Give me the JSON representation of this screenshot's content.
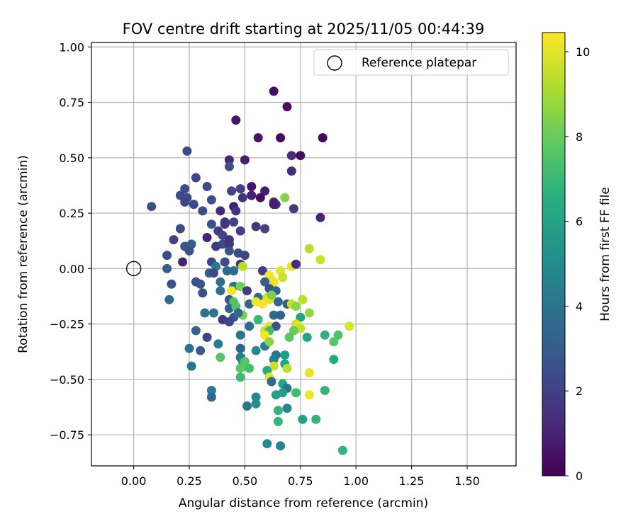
{
  "chart_data": {
    "type": "scatter",
    "title": "FOV centre drift starting at 2025/11/05 00:44:39",
    "xlabel": "Angular distance from reference (arcmin)",
    "ylabel": "Rotation from reference (arcmin)",
    "xlim": [
      -0.19,
      1.72
    ],
    "ylim": [
      -0.89,
      1.02
    ],
    "xticks": [
      0.0,
      0.25,
      0.5,
      0.75,
      1.0,
      1.25,
      1.5
    ],
    "xtick_labels": [
      "0.00",
      "0.25",
      "0.50",
      "0.75",
      "1.00",
      "1.25",
      "1.50"
    ],
    "yticks": [
      1.0,
      0.75,
      0.5,
      0.25,
      0.0,
      -0.25,
      -0.5,
      -0.75
    ],
    "ytick_labels": [
      "1.00",
      "0.75",
      "0.50",
      "0.25",
      "0.00",
      "−0.25",
      "−0.50",
      "−0.75"
    ],
    "grid": true,
    "legend": {
      "placement": "upper-right",
      "entries": [
        "Reference platepar"
      ]
    },
    "reference_point": {
      "x": 0.0,
      "y": 0.0
    },
    "colorbar": {
      "label": "Hours from first FF file",
      "colormap": "viridis",
      "range": [
        0,
        10.45
      ],
      "ticks": [
        0,
        2,
        4,
        6,
        8,
        10
      ],
      "tick_labels": [
        "0",
        "2",
        "4",
        "6",
        "8",
        "10"
      ]
    },
    "points": [
      {
        "x": 0.63,
        "y": 0.8,
        "c": 0.3
      },
      {
        "x": 0.69,
        "y": 0.73,
        "c": 0.4
      },
      {
        "x": 0.46,
        "y": 0.67,
        "c": 0.6
      },
      {
        "x": 0.56,
        "y": 0.59,
        "c": 0.5
      },
      {
        "x": 0.66,
        "y": 0.59,
        "c": 0.2
      },
      {
        "x": 0.85,
        "y": 0.59,
        "c": 0.2
      },
      {
        "x": 0.24,
        "y": 0.53,
        "c": 2.3
      },
      {
        "x": 0.71,
        "y": 0.51,
        "c": 1.4
      },
      {
        "x": 0.75,
        "y": 0.51,
        "c": 0.3
      },
      {
        "x": 0.43,
        "y": 0.49,
        "c": 1.2
      },
      {
        "x": 0.5,
        "y": 0.49,
        "c": 0.9
      },
      {
        "x": 0.43,
        "y": 0.46,
        "c": 2.5
      },
      {
        "x": 0.71,
        "y": 0.44,
        "c": 1.3
      },
      {
        "x": 0.28,
        "y": 0.41,
        "c": 2.2
      },
      {
        "x": 0.33,
        "y": 0.37,
        "c": 2.4
      },
      {
        "x": 0.53,
        "y": 0.37,
        "c": 0.6
      },
      {
        "x": 0.23,
        "y": 0.36,
        "c": 2.4
      },
      {
        "x": 0.44,
        "y": 0.35,
        "c": 2.0
      },
      {
        "x": 0.48,
        "y": 0.36,
        "c": 2.0
      },
      {
        "x": 0.59,
        "y": 0.35,
        "c": 0.8
      },
      {
        "x": 0.21,
        "y": 0.33,
        "c": 2.3
      },
      {
        "x": 0.24,
        "y": 0.32,
        "c": 2.4
      },
      {
        "x": 0.49,
        "y": 0.32,
        "c": 1.7
      },
      {
        "x": 0.53,
        "y": 0.33,
        "c": 0.9
      },
      {
        "x": 0.57,
        "y": 0.32,
        "c": 0.4
      },
      {
        "x": 0.68,
        "y": 0.32,
        "c": 8.5
      },
      {
        "x": 0.35,
        "y": 0.31,
        "c": 2.5
      },
      {
        "x": 0.63,
        "y": 0.3,
        "c": 1.2
      },
      {
        "x": 0.23,
        "y": 0.3,
        "c": 2.2
      },
      {
        "x": 0.27,
        "y": 0.29,
        "c": 2.3
      },
      {
        "x": 0.64,
        "y": 0.29,
        "c": 1.6
      },
      {
        "x": 0.63,
        "y": 0.29,
        "c": 0.9
      },
      {
        "x": 0.08,
        "y": 0.28,
        "c": 2.6
      },
      {
        "x": 0.45,
        "y": 0.28,
        "c": 0.8
      },
      {
        "x": 0.72,
        "y": 0.27,
        "c": 1.8
      },
      {
        "x": 0.31,
        "y": 0.26,
        "c": 2.4
      },
      {
        "x": 0.39,
        "y": 0.26,
        "c": 1.2
      },
      {
        "x": 0.46,
        "y": 0.26,
        "c": 1.5
      },
      {
        "x": 0.84,
        "y": 0.23,
        "c": 1.1
      },
      {
        "x": 0.41,
        "y": 0.21,
        "c": 1.5
      },
      {
        "x": 0.45,
        "y": 0.21,
        "c": 2.2
      },
      {
        "x": 0.35,
        "y": 0.2,
        "c": 2.6
      },
      {
        "x": 0.41,
        "y": 0.2,
        "c": 1.6
      },
      {
        "x": 0.55,
        "y": 0.19,
        "c": 1.6
      },
      {
        "x": 0.59,
        "y": 0.18,
        "c": 2.0
      },
      {
        "x": 0.21,
        "y": 0.18,
        "c": 2.4
      },
      {
        "x": 0.48,
        "y": 0.17,
        "c": 1.9
      },
      {
        "x": 0.38,
        "y": 0.17,
        "c": 1.8
      },
      {
        "x": 0.4,
        "y": 0.15,
        "c": 2.2
      },
      {
        "x": 0.33,
        "y": 0.14,
        "c": 1.0
      },
      {
        "x": 0.18,
        "y": 0.13,
        "c": 2.1
      },
      {
        "x": 0.43,
        "y": 0.13,
        "c": 1.5
      },
      {
        "x": 0.4,
        "y": 0.11,
        "c": 2.4
      },
      {
        "x": 0.43,
        "y": 0.11,
        "c": 1.6
      },
      {
        "x": 0.23,
        "y": 0.1,
        "c": 2.7
      },
      {
        "x": 0.26,
        "y": 0.11,
        "c": 3.1
      },
      {
        "x": 0.37,
        "y": 0.1,
        "c": 1.8
      },
      {
        "x": 0.25,
        "y": 0.08,
        "c": 2.5
      },
      {
        "x": 0.43,
        "y": 0.08,
        "c": 2.7
      },
      {
        "x": 0.47,
        "y": 0.07,
        "c": 2.4
      },
      {
        "x": 0.5,
        "y": 0.06,
        "c": 2.1
      },
      {
        "x": 0.15,
        "y": 0.06,
        "c": 2.4
      },
      {
        "x": 0.22,
        "y": 0.03,
        "c": 1.0
      },
      {
        "x": 0.35,
        "y": 0.03,
        "c": 2.2
      },
      {
        "x": 0.41,
        "y": 0.03,
        "c": 2.3
      },
      {
        "x": 0.48,
        "y": 0.02,
        "c": 1.5
      },
      {
        "x": 0.49,
        "y": 0.01,
        "c": 9.3
      },
      {
        "x": 0.71,
        "y": 0.01,
        "c": 10.0
      },
      {
        "x": 0.73,
        "y": 0.02,
        "c": 1.3
      },
      {
        "x": 0.37,
        "y": 0.01,
        "c": 4.3
      },
      {
        "x": 0.79,
        "y": 0.09,
        "c": 9.3
      },
      {
        "x": 0.84,
        "y": 0.04,
        "c": 9.6
      },
      {
        "x": 0.15,
        "y": 0.0,
        "c": 3.0
      },
      {
        "x": 0.34,
        "y": -0.02,
        "c": 3.0
      },
      {
        "x": 0.36,
        "y": -0.02,
        "c": 2.3
      },
      {
        "x": 0.42,
        "y": -0.01,
        "c": 3.5
      },
      {
        "x": 0.45,
        "y": -0.01,
        "c": 3.6
      },
      {
        "x": 0.58,
        "y": -0.01,
        "c": 1.8
      },
      {
        "x": 0.61,
        "y": -0.03,
        "c": 10.3
      },
      {
        "x": 0.66,
        "y": -0.01,
        "c": 10.0
      },
      {
        "x": 0.67,
        "y": -0.04,
        "c": 9.6
      },
      {
        "x": 0.62,
        "y": -0.05,
        "c": 10.2
      },
      {
        "x": 0.63,
        "y": -0.06,
        "c": 10.2
      },
      {
        "x": 0.59,
        "y": -0.06,
        "c": 3.2
      },
      {
        "x": 0.28,
        "y": -0.06,
        "c": 2.5
      },
      {
        "x": 0.3,
        "y": -0.07,
        "c": 2.7
      },
      {
        "x": 0.39,
        "y": -0.06,
        "c": 3.8
      },
      {
        "x": 0.45,
        "y": -0.08,
        "c": 3.8
      },
      {
        "x": 0.17,
        "y": -0.07,
        "c": 2.6
      },
      {
        "x": 0.48,
        "y": -0.08,
        "c": 8.2
      },
      {
        "x": 0.61,
        "y": -0.09,
        "c": 2.6
      },
      {
        "x": 0.31,
        "y": -0.11,
        "c": 2.5
      },
      {
        "x": 0.39,
        "y": -0.1,
        "c": 3.7
      },
      {
        "x": 0.44,
        "y": -0.1,
        "c": 10.3
      },
      {
        "x": 0.51,
        "y": -0.1,
        "c": 1.8
      },
      {
        "x": 0.64,
        "y": -0.1,
        "c": 3.3
      },
      {
        "x": 0.56,
        "y": -0.13,
        "c": 3.5
      },
      {
        "x": 0.6,
        "y": -0.13,
        "c": 9.6
      },
      {
        "x": 0.61,
        "y": -0.14,
        "c": 10.0
      },
      {
        "x": 0.62,
        "y": -0.12,
        "c": 8.3
      },
      {
        "x": 0.76,
        "y": -0.14,
        "c": 9.4
      },
      {
        "x": 0.16,
        "y": -0.14,
        "c": 3.6
      },
      {
        "x": 0.43,
        "y": -0.14,
        "c": 2.8
      },
      {
        "x": 0.45,
        "y": -0.15,
        "c": 7.6
      },
      {
        "x": 0.52,
        "y": -0.16,
        "c": 3.3
      },
      {
        "x": 0.55,
        "y": -0.15,
        "c": 10.2
      },
      {
        "x": 0.58,
        "y": -0.16,
        "c": 10.3
      },
      {
        "x": 0.65,
        "y": -0.15,
        "c": 3.4
      },
      {
        "x": 0.69,
        "y": -0.16,
        "c": 3.1
      },
      {
        "x": 0.71,
        "y": -0.16,
        "c": 9.6
      },
      {
        "x": 0.73,
        "y": -0.17,
        "c": 8.6
      },
      {
        "x": 0.43,
        "y": -0.18,
        "c": 3.3
      },
      {
        "x": 0.46,
        "y": -0.17,
        "c": 7.5
      },
      {
        "x": 0.32,
        "y": -0.2,
        "c": 4.0
      },
      {
        "x": 0.36,
        "y": -0.2,
        "c": 4.0
      },
      {
        "x": 0.49,
        "y": -0.21,
        "c": 8.2
      },
      {
        "x": 0.79,
        "y": -0.2,
        "c": 8.8
      },
      {
        "x": 0.45,
        "y": -0.22,
        "c": 2.9
      },
      {
        "x": 0.47,
        "y": -0.2,
        "c": 3.5
      },
      {
        "x": 0.63,
        "y": -0.21,
        "c": 3.6
      },
      {
        "x": 0.66,
        "y": -0.21,
        "c": 3.2
      },
      {
        "x": 0.75,
        "y": -0.22,
        "c": 6.0
      },
      {
        "x": 0.4,
        "y": -0.23,
        "c": 1.8
      },
      {
        "x": 0.43,
        "y": -0.24,
        "c": 2.1
      },
      {
        "x": 0.56,
        "y": -0.23,
        "c": 7.0
      },
      {
        "x": 0.52,
        "y": -0.26,
        "c": 3.7
      },
      {
        "x": 0.61,
        "y": -0.26,
        "c": 10.0
      },
      {
        "x": 0.64,
        "y": -0.26,
        "c": 2.6
      },
      {
        "x": 0.73,
        "y": -0.25,
        "c": 9.8
      },
      {
        "x": 0.74,
        "y": -0.26,
        "c": 10.0
      },
      {
        "x": 0.75,
        "y": -0.27,
        "c": 9.5
      },
      {
        "x": 0.59,
        "y": -0.28,
        "c": 9.7
      },
      {
        "x": 0.61,
        "y": -0.28,
        "c": 7.2
      },
      {
        "x": 0.72,
        "y": -0.28,
        "c": 8.0
      },
      {
        "x": 0.28,
        "y": -0.28,
        "c": 3.2
      },
      {
        "x": 0.59,
        "y": -0.3,
        "c": 10.3
      },
      {
        "x": 0.48,
        "y": -0.3,
        "c": 4.1
      },
      {
        "x": 0.7,
        "y": -0.31,
        "c": 7.7
      },
      {
        "x": 0.78,
        "y": -0.31,
        "c": 6.0
      },
      {
        "x": 0.33,
        "y": -0.31,
        "c": 2.1
      },
      {
        "x": 0.86,
        "y": -0.3,
        "c": 6.6
      },
      {
        "x": 0.9,
        "y": -0.33,
        "c": 7.6
      },
      {
        "x": 0.92,
        "y": -0.3,
        "c": 7.5
      },
      {
        "x": 0.97,
        "y": -0.26,
        "c": 9.9
      },
      {
        "x": 0.38,
        "y": -0.34,
        "c": 4.2
      },
      {
        "x": 0.59,
        "y": -0.35,
        "c": 4.6
      },
      {
        "x": 0.61,
        "y": -0.33,
        "c": 8.6
      },
      {
        "x": 0.25,
        "y": -0.36,
        "c": 3.8
      },
      {
        "x": 0.3,
        "y": -0.37,
        "c": 3.0
      },
      {
        "x": 0.48,
        "y": -0.36,
        "c": 3.3
      },
      {
        "x": 0.55,
        "y": -0.37,
        "c": 5.0
      },
      {
        "x": 0.64,
        "y": -0.39,
        "c": 4.0
      },
      {
        "x": 0.68,
        "y": -0.39,
        "c": 5.9
      },
      {
        "x": 0.39,
        "y": -0.4,
        "c": 7.6
      },
      {
        "x": 0.48,
        "y": -0.4,
        "c": 4.3
      },
      {
        "x": 0.49,
        "y": -0.42,
        "c": 5.3
      },
      {
        "x": 0.5,
        "y": -0.42,
        "c": 7.6
      },
      {
        "x": 0.63,
        "y": -0.41,
        "c": 4.6
      },
      {
        "x": 0.9,
        "y": -0.41,
        "c": 6.3
      },
      {
        "x": 0.26,
        "y": -0.44,
        "c": 4.0
      },
      {
        "x": 0.48,
        "y": -0.45,
        "c": 7.7
      },
      {
        "x": 0.52,
        "y": -0.45,
        "c": 7.3
      },
      {
        "x": 0.63,
        "y": -0.44,
        "c": 9.7
      },
      {
        "x": 0.68,
        "y": -0.43,
        "c": 6.0
      },
      {
        "x": 0.69,
        "y": -0.45,
        "c": 9.3
      },
      {
        "x": 0.6,
        "y": -0.46,
        "c": 6.3
      },
      {
        "x": 0.79,
        "y": -0.47,
        "c": 10.0
      },
      {
        "x": 0.48,
        "y": -0.49,
        "c": 7.2
      },
      {
        "x": 0.61,
        "y": -0.49,
        "c": 10.0
      },
      {
        "x": 0.62,
        "y": -0.51,
        "c": 3.6
      },
      {
        "x": 0.67,
        "y": -0.52,
        "c": 6.1
      },
      {
        "x": 0.69,
        "y": -0.54,
        "c": 4.0
      },
      {
        "x": 0.35,
        "y": -0.55,
        "c": 4.4
      },
      {
        "x": 0.67,
        "y": -0.56,
        "c": 5.8
      },
      {
        "x": 0.73,
        "y": -0.56,
        "c": 7.2
      },
      {
        "x": 0.86,
        "y": -0.55,
        "c": 6.9
      },
      {
        "x": 0.35,
        "y": -0.58,
        "c": 3.2
      },
      {
        "x": 0.55,
        "y": -0.58,
        "c": 4.8
      },
      {
        "x": 0.64,
        "y": -0.57,
        "c": 6.0
      },
      {
        "x": 0.79,
        "y": -0.57,
        "c": 10.2
      },
      {
        "x": 0.55,
        "y": -0.61,
        "c": 5.2
      },
      {
        "x": 0.51,
        "y": -0.62,
        "c": 4.0
      },
      {
        "x": 0.65,
        "y": -0.64,
        "c": 6.8
      },
      {
        "x": 0.69,
        "y": -0.63,
        "c": 4.8
      },
      {
        "x": 0.65,
        "y": -0.69,
        "c": 6.9
      },
      {
        "x": 0.76,
        "y": -0.68,
        "c": 6.0
      },
      {
        "x": 0.82,
        "y": -0.68,
        "c": 6.7
      },
      {
        "x": 0.6,
        "y": -0.79,
        "c": 5.0
      },
      {
        "x": 0.66,
        "y": -0.8,
        "c": 4.8
      },
      {
        "x": 0.94,
        "y": -0.82,
        "c": 6.8
      }
    ]
  }
}
